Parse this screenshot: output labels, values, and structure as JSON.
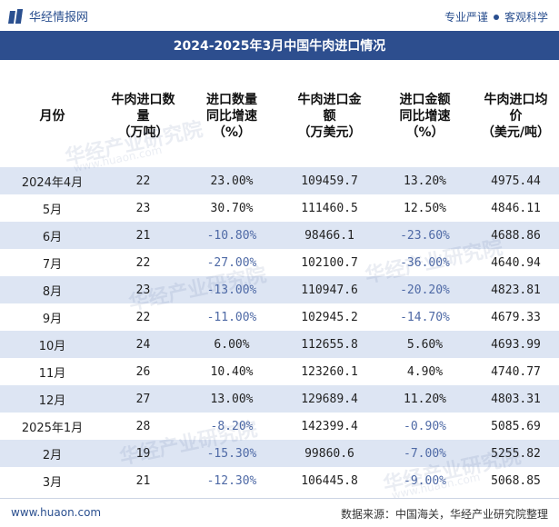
{
  "brand": {
    "name": "华经情报网",
    "slogan_1": "专业严谨",
    "slogan_2": "客观科学"
  },
  "title": "2024-2025年3月中国牛肉进口情况",
  "headers": [
    "月份",
    "牛肉进口数\n量\n（万吨）",
    "进口数量\n同比增速\n（%）",
    "牛肉进口金\n额\n（万美元）",
    "进口金额\n同比增速\n（%）",
    "牛肉进口均\n价\n（美元/吨）"
  ],
  "rows": [
    {
      "month": "2024年4月",
      "qty": "22",
      "qty_yoy": "23.00%",
      "amount": "109459.7",
      "amount_yoy": "13.20%",
      "price": "4975.44"
    },
    {
      "month": "5月",
      "qty": "23",
      "qty_yoy": "30.70%",
      "amount": "111460.5",
      "amount_yoy": "12.50%",
      "price": "4846.11"
    },
    {
      "month": "6月",
      "qty": "21",
      "qty_yoy": "-10.80%",
      "amount": "98466.1",
      "amount_yoy": "-23.60%",
      "price": "4688.86"
    },
    {
      "month": "7月",
      "qty": "22",
      "qty_yoy": "-27.00%",
      "amount": "102100.7",
      "amount_yoy": "-36.00%",
      "price": "4640.94"
    },
    {
      "month": "8月",
      "qty": "23",
      "qty_yoy": "-13.00%",
      "amount": "110947.6",
      "amount_yoy": "-20.20%",
      "price": "4823.81"
    },
    {
      "month": "9月",
      "qty": "22",
      "qty_yoy": "-11.00%",
      "amount": "102945.2",
      "amount_yoy": "-14.70%",
      "price": "4679.33"
    },
    {
      "month": "10月",
      "qty": "24",
      "qty_yoy": "6.00%",
      "amount": "112655.8",
      "amount_yoy": "5.60%",
      "price": "4693.99"
    },
    {
      "month": "11月",
      "qty": "26",
      "qty_yoy": "10.40%",
      "amount": "123260.1",
      "amount_yoy": "4.90%",
      "price": "4740.77"
    },
    {
      "month": "12月",
      "qty": "27",
      "qty_yoy": "13.00%",
      "amount": "129689.4",
      "amount_yoy": "11.20%",
      "price": "4803.31"
    },
    {
      "month": "2025年1月",
      "qty": "28",
      "qty_yoy": "-8.20%",
      "amount": "142399.4",
      "amount_yoy": "-0.90%",
      "price": "5085.69"
    },
    {
      "month": "2月",
      "qty": "19",
      "qty_yoy": "-15.30%",
      "amount": "99860.6",
      "amount_yoy": "-7.00%",
      "price": "5255.82"
    },
    {
      "month": "3月",
      "qty": "21",
      "qty_yoy": "-12.30%",
      "amount": "106445.8",
      "amount_yoy": "-9.00%",
      "price": "5068.85"
    }
  ],
  "footer": {
    "site": "www.huaon.com",
    "source": "数据来源：中国海关，华经产业研究院整理"
  },
  "watermark": {
    "cn": "华经产业研究院",
    "en": "www.huaon.com"
  },
  "colors": {
    "brand": "#2d4e8e",
    "stripe": "#dde5f3",
    "negative": "#4f6aa6"
  }
}
